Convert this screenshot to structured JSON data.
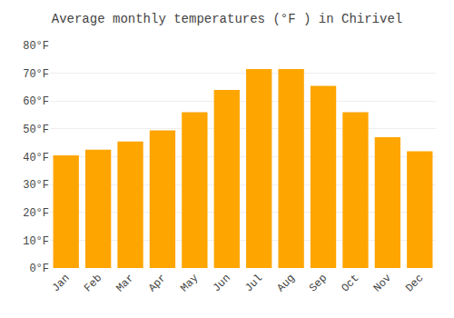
{
  "chart_data": {
    "type": "bar",
    "title": "Average monthly temperatures (°F ) in Chirivel",
    "categories": [
      "Jan",
      "Feb",
      "Mar",
      "Apr",
      "May",
      "Jun",
      "Jul",
      "Aug",
      "Sep",
      "Oct",
      "Nov",
      "Dec"
    ],
    "values": [
      40.5,
      42.5,
      45.5,
      49.5,
      56,
      64,
      71.5,
      71.5,
      65.5,
      56,
      47,
      42
    ],
    "color": "#FFA500",
    "ylim": [
      0,
      80
    ],
    "yticks": [
      {
        "value": 0,
        "label": "0°F"
      },
      {
        "value": 10,
        "label": "10°F"
      },
      {
        "value": 20,
        "label": "20°F"
      },
      {
        "value": 30,
        "label": "30°F"
      },
      {
        "value": 40,
        "label": "40°F"
      },
      {
        "value": 50,
        "label": "50°F"
      },
      {
        "value": 60,
        "label": "60°F"
      },
      {
        "value": 70,
        "label": "70°F"
      },
      {
        "value": 80,
        "label": "80°F"
      }
    ],
    "grid": true
  }
}
